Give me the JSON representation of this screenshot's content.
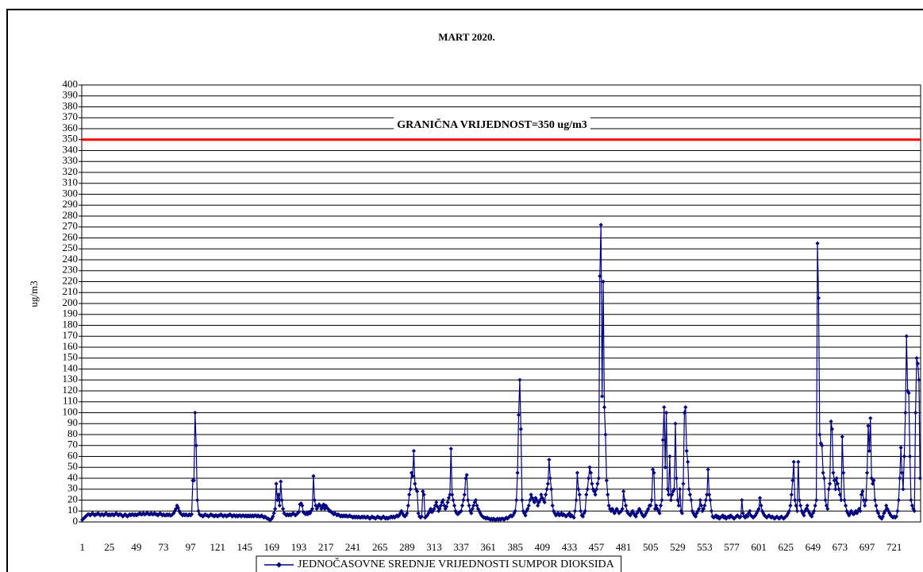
{
  "chart_data": {
    "type": "line",
    "title": "MART 2020.",
    "y_label": "ug/m3",
    "ylim": [
      0,
      400
    ],
    "yticks": [
      0,
      10,
      20,
      30,
      40,
      50,
      60,
      70,
      80,
      90,
      100,
      110,
      120,
      130,
      140,
      150,
      160,
      170,
      180,
      190,
      200,
      210,
      220,
      230,
      240,
      250,
      260,
      270,
      280,
      290,
      300,
      310,
      320,
      330,
      340,
      350,
      360,
      370,
      380,
      390,
      400
    ],
    "grid": true,
    "threshold": {
      "value": 350,
      "label": "GRANIČNA VRIJEDNOST=350 ug/m3",
      "color": "#ff0000"
    },
    "legend": "bottom",
    "categories": [
      "1",
      null,
      null,
      null,
      null,
      null,
      null,
      null,
      null,
      null,
      null,
      null,
      null,
      null,
      null,
      null,
      null,
      null,
      null,
      null,
      null,
      null,
      null,
      null,
      "25",
      null,
      null,
      null,
      null,
      null,
      null,
      null,
      null,
      null,
      null,
      null,
      null,
      null,
      null,
      null,
      null,
      null,
      null,
      null,
      null,
      null,
      null,
      null,
      "49",
      null,
      null,
      null,
      null,
      null,
      null,
      null,
      null,
      null,
      null,
      null,
      null,
      null,
      null,
      null,
      null,
      null,
      null,
      null,
      null,
      null,
      null,
      null,
      "73",
      null,
      null,
      null,
      null,
      null,
      null,
      null,
      null,
      null,
      null,
      null,
      null,
      null,
      null,
      null,
      null,
      null,
      null,
      null,
      null,
      null,
      null,
      null,
      "97",
      null,
      null,
      null,
      null,
      null,
      null,
      null,
      null,
      null,
      null,
      null,
      null,
      null,
      null,
      null,
      null,
      null,
      null,
      null,
      null,
      null,
      null,
      null,
      "121",
      null,
      null,
      null,
      null,
      null,
      null,
      null,
      null,
      null,
      null,
      null,
      null,
      null,
      null,
      null,
      null,
      null,
      null,
      null,
      null,
      null,
      null,
      null,
      "145",
      null,
      null,
      null,
      null,
      null,
      null,
      null,
      null,
      null,
      null,
      null,
      null,
      null,
      null,
      null,
      null,
      null,
      null,
      null,
      null,
      null,
      null,
      null,
      "169",
      null,
      null,
      null,
      null,
      null,
      null,
      null,
      null,
      null,
      null,
      null,
      null,
      null,
      null,
      null,
      null,
      null,
      null,
      null,
      null,
      null,
      null,
      null,
      "193",
      null,
      null,
      null,
      null,
      null,
      null,
      null,
      null,
      null,
      null,
      null,
      null,
      null,
      null,
      null,
      null,
      null,
      null,
      null,
      null,
      null,
      null,
      null,
      "217",
      null,
      null,
      null,
      null,
      null,
      null,
      null,
      null,
      null,
      null,
      null,
      null,
      null,
      null,
      null,
      null,
      null,
      null,
      null,
      null,
      null,
      null,
      null,
      "241",
      null,
      null,
      null,
      null,
      null,
      null,
      null,
      null,
      null,
      null,
      null,
      null,
      null,
      null,
      null,
      null,
      null,
      null,
      null,
      null,
      null,
      null,
      null,
      "265",
      null,
      null,
      null,
      null,
      null,
      null,
      null,
      null,
      null,
      null,
      null,
      null,
      null,
      null,
      null,
      null,
      null,
      null,
      null,
      null,
      null,
      null,
      null,
      "289",
      null,
      null,
      null,
      null,
      null,
      null,
      null,
      null,
      null,
      null,
      null,
      null,
      null,
      null,
      null,
      null,
      null,
      null,
      null,
      null,
      null,
      null,
      null,
      "313",
      null,
      null,
      null,
      null,
      null,
      null,
      null,
      null,
      null,
      null,
      null,
      null,
      null,
      null,
      null,
      null,
      null,
      null,
      null,
      null,
      null,
      null,
      null,
      "337",
      null,
      null,
      null,
      null,
      null,
      null,
      null,
      null,
      null,
      null,
      null,
      null,
      null,
      null,
      null,
      null,
      null,
      null,
      null,
      null,
      null,
      null,
      null,
      "361",
      null,
      null,
      null,
      null,
      null,
      null,
      null,
      null,
      null,
      null,
      null,
      null,
      null,
      null,
      null,
      null,
      null,
      null,
      null,
      null,
      null,
      null,
      null,
      "385",
      null,
      null,
      null,
      null,
      null,
      null,
      null,
      null,
      null,
      null,
      null,
      null,
      null,
      null,
      null,
      null,
      null,
      null,
      null,
      null,
      null,
      null,
      null,
      "409",
      null,
      null,
      null,
      null,
      null,
      null,
      null,
      null,
      null,
      null,
      null,
      null,
      null,
      null,
      null,
      null,
      null,
      null,
      null,
      null,
      null,
      null,
      null,
      "433",
      null,
      null,
      null,
      null,
      null,
      null,
      null,
      null,
      null,
      null,
      null,
      null,
      null,
      null,
      null,
      null,
      null,
      null,
      null,
      null,
      null,
      null,
      null,
      "457",
      null,
      null,
      null,
      null,
      null,
      null,
      null,
      null,
      null,
      null,
      null,
      null,
      null,
      null,
      null,
      null,
      null,
      null,
      null,
      null,
      null,
      null,
      null,
      "481",
      null,
      null,
      null,
      null,
      null,
      null,
      null,
      null,
      null,
      null,
      null,
      null,
      null,
      null,
      null,
      null,
      null,
      null,
      null,
      null,
      null,
      null,
      null,
      "505",
      null,
      null,
      null,
      null,
      null,
      null,
      null,
      null,
      null,
      null,
      null,
      null,
      null,
      null,
      null,
      null,
      null,
      null,
      null,
      null,
      null,
      null,
      null,
      "529",
      null,
      null,
      null,
      null,
      null,
      null,
      null,
      null,
      null,
      null,
      null,
      null,
      null,
      null,
      null,
      null,
      null,
      null,
      null,
      null,
      null,
      null,
      null,
      "553",
      null,
      null,
      null,
      null,
      null,
      null,
      null,
      null,
      null,
      null,
      null,
      null,
      null,
      null,
      null,
      null,
      null,
      null,
      null,
      null,
      null,
      null,
      null,
      "577",
      null,
      null,
      null,
      null,
      null,
      null,
      null,
      null,
      null,
      null,
      null,
      null,
      null,
      null,
      null,
      null,
      null,
      null,
      null,
      null,
      null,
      null,
      null,
      "601",
      null,
      null,
      null,
      null,
      null,
      null,
      null,
      null,
      null,
      null,
      null,
      null,
      null,
      null,
      null,
      null,
      null,
      null,
      null,
      null,
      null,
      null,
      null,
      "625",
      null,
      null,
      null,
      null,
      null,
      null,
      null,
      null,
      null,
      null,
      null,
      null,
      null,
      null,
      null,
      null,
      null,
      null,
      null,
      null,
      null,
      null,
      null,
      "649",
      null,
      null,
      null,
      null,
      null,
      null,
      null,
      null,
      null,
      null,
      null,
      null,
      null,
      null,
      null,
      null,
      null,
      null,
      null,
      null,
      null,
      null,
      null,
      "673",
      null,
      null,
      null,
      null,
      null,
      null,
      null,
      null,
      null,
      null,
      null,
      null,
      null,
      null,
      null,
      null,
      null,
      null,
      null,
      null,
      null,
      null,
      null,
      "697",
      null,
      null,
      null,
      null,
      null,
      null,
      null,
      null,
      null,
      null,
      null,
      null,
      null,
      null,
      null,
      null,
      null,
      null,
      null,
      null,
      null,
      null,
      null,
      "721",
      null,
      null,
      null,
      null,
      null,
      null,
      null,
      null,
      null,
      null,
      null,
      null,
      null,
      null,
      null,
      null,
      null,
      null,
      null,
      null,
      null,
      null,
      null
    ],
    "series": [
      {
        "name": "JEDNOČASOVNE SREDNJE VRIJEDNOSTI SUMPOR DIOKSIDA",
        "color": "#000080",
        "values": [
          2,
          3,
          4,
          5,
          6,
          7,
          7,
          6,
          7,
          8,
          7,
          6,
          7,
          7,
          8,
          7,
          6,
          7,
          7,
          6,
          7,
          8,
          7,
          6,
          7,
          6,
          7,
          7,
          6,
          7,
          8,
          7,
          6,
          7,
          7,
          6,
          5,
          6,
          7,
          6,
          5,
          6,
          7,
          6,
          7,
          7,
          6,
          7,
          6,
          7,
          7,
          8,
          7,
          7,
          8,
          7,
          7,
          8,
          8,
          7,
          7,
          8,
          7,
          7,
          8,
          7,
          7,
          6,
          7,
          8,
          7,
          6,
          7,
          6,
          6,
          7,
          6,
          7,
          6,
          6,
          7,
          8,
          10,
          12,
          15,
          13,
          10,
          8,
          7,
          6,
          7,
          6,
          7,
          6,
          6,
          7,
          6,
          7,
          38,
          38,
          100,
          70,
          20,
          10,
          7,
          6,
          6,
          5,
          6,
          7,
          6,
          6,
          5,
          6,
          7,
          6,
          6,
          5,
          6,
          6,
          5,
          6,
          6,
          7,
          6,
          5,
          6,
          6,
          5,
          6,
          6,
          7,
          6,
          5,
          6,
          6,
          5,
          6,
          5,
          6,
          6,
          5,
          6,
          6,
          5,
          6,
          5,
          6,
          5,
          6,
          5,
          6,
          5,
          6,
          6,
          5,
          6,
          5,
          5,
          6,
          5,
          4,
          5,
          4,
          3,
          3,
          2,
          2,
          3,
          5,
          8,
          12,
          35,
          20,
          25,
          15,
          37,
          20,
          12,
          8,
          7,
          6,
          7,
          6,
          7,
          6,
          7,
          8,
          7,
          6,
          7,
          8,
          9,
          16,
          17,
          15,
          9,
          8,
          7,
          8,
          7,
          9,
          8,
          10,
          12,
          42,
          20,
          15,
          12,
          14,
          16,
          15,
          12,
          14,
          16,
          12,
          15,
          13,
          12,
          10,
          10,
          9,
          8,
          7,
          8,
          7,
          6,
          7,
          6,
          5,
          6,
          5,
          6,
          5,
          6,
          5,
          5,
          6,
          5,
          5,
          4,
          5,
          4,
          5,
          4,
          5,
          4,
          4,
          5,
          4,
          5,
          4,
          4,
          5,
          4,
          3,
          4,
          5,
          4,
          4,
          3,
          4,
          5,
          4,
          4,
          3,
          4,
          5,
          4,
          3,
          4,
          3,
          4,
          4,
          5,
          4,
          5,
          4,
          5,
          6,
          5,
          6,
          8,
          10,
          8,
          6,
          5,
          6,
          8,
          15,
          25,
          30,
          45,
          42,
          65,
          35,
          30,
          28,
          8,
          5,
          4,
          5,
          28,
          25,
          4,
          5,
          6,
          8,
          10,
          12,
          9,
          10,
          12,
          15,
          18,
          14,
          10,
          12,
          15,
          18,
          20,
          15,
          12,
          14,
          18,
          22,
          25,
          67,
          25,
          20,
          15,
          10,
          8,
          7,
          8,
          9,
          10,
          15,
          20,
          25,
          40,
          43,
          20,
          15,
          10,
          8,
          12,
          15,
          18,
          20,
          15,
          12,
          10,
          8,
          6,
          5,
          4,
          4,
          3,
          4,
          3,
          3,
          2,
          3,
          2,
          3,
          2,
          2,
          3,
          2,
          3,
          2,
          3,
          3,
          2,
          3,
          4,
          3,
          4,
          5,
          6,
          5,
          6,
          8,
          10,
          20,
          45,
          98,
          130,
          85,
          20,
          10,
          8,
          6,
          10,
          12,
          15,
          20,
          25,
          22,
          20,
          18,
          22,
          20,
          15,
          18,
          20,
          25,
          22,
          20,
          18,
          25,
          30,
          35,
          57,
          40,
          30,
          15,
          10,
          8,
          6,
          7,
          8,
          6,
          7,
          8,
          6,
          7,
          6,
          5,
          6,
          7,
          8,
          5,
          6,
          5,
          4,
          10,
          20,
          45,
          30,
          25,
          10,
          6,
          5,
          8,
          10,
          25,
          30,
          40,
          50,
          45,
          35,
          30,
          28,
          25,
          30,
          35,
          40,
          225,
          272,
          115,
          220,
          105,
          80,
          38,
          25,
          15,
          12,
          10,
          12,
          10,
          8,
          10,
          12,
          10,
          8,
          9,
          10,
          12,
          28,
          20,
          15,
          10,
          8,
          7,
          6,
          8,
          10,
          8,
          6,
          5,
          8,
          10,
          12,
          10,
          8,
          6,
          5,
          6,
          8,
          10,
          12,
          15,
          15,
          20,
          48,
          45,
          12,
          15,
          12,
          10,
          8,
          15,
          20,
          75,
          105,
          50,
          100,
          30,
          25,
          60,
          20,
          25,
          28,
          30,
          90,
          40,
          20,
          15,
          30,
          10,
          8,
          35,
          100,
          105,
          65,
          55,
          30,
          25,
          20,
          10,
          8,
          6,
          5,
          8,
          10,
          12,
          20,
          15,
          10,
          12,
          15,
          20,
          25,
          48,
          25,
          20,
          10,
          5,
          4,
          5,
          6,
          4,
          5,
          3,
          4,
          5,
          6,
          4,
          5,
          3,
          4,
          5,
          4,
          6,
          5,
          4,
          3,
          4,
          5,
          6,
          5,
          4,
          5,
          20,
          8,
          5,
          4,
          6,
          5,
          8,
          10,
          6,
          5,
          4,
          5,
          6,
          8,
          10,
          12,
          22,
          15,
          10,
          8,
          6,
          5,
          4,
          5,
          6,
          5,
          4,
          5,
          4,
          3,
          4,
          5,
          4,
          3,
          4,
          5,
          4,
          3,
          4,
          5,
          6,
          8,
          10,
          15,
          25,
          38,
          55,
          20,
          15,
          10,
          55,
          20,
          15,
          10,
          8,
          6,
          10,
          12,
          15,
          10,
          8,
          6,
          5,
          8,
          10,
          15,
          20,
          255,
          205,
          80,
          72,
          70,
          45,
          40,
          20,
          15,
          12,
          30,
          35,
          92,
          85,
          45,
          38,
          30,
          40,
          35,
          30,
          25,
          20,
          78,
          45,
          20,
          15,
          10,
          8,
          6,
          8,
          10,
          8,
          7,
          8,
          10,
          8,
          10,
          12,
          10,
          25,
          28,
          20,
          15,
          20,
          45,
          88,
          65,
          95,
          40,
          35,
          38,
          20,
          15,
          10,
          8,
          5,
          4,
          3,
          5,
          8,
          10,
          15,
          12,
          10,
          8,
          6,
          5,
          4,
          5,
          4,
          5,
          10,
          20,
          40,
          68,
          45,
          30,
          60,
          100,
          170,
          120,
          118,
          60,
          20,
          15,
          12,
          10,
          100,
          150,
          145,
          130,
          40
        ]
      }
    ]
  }
}
